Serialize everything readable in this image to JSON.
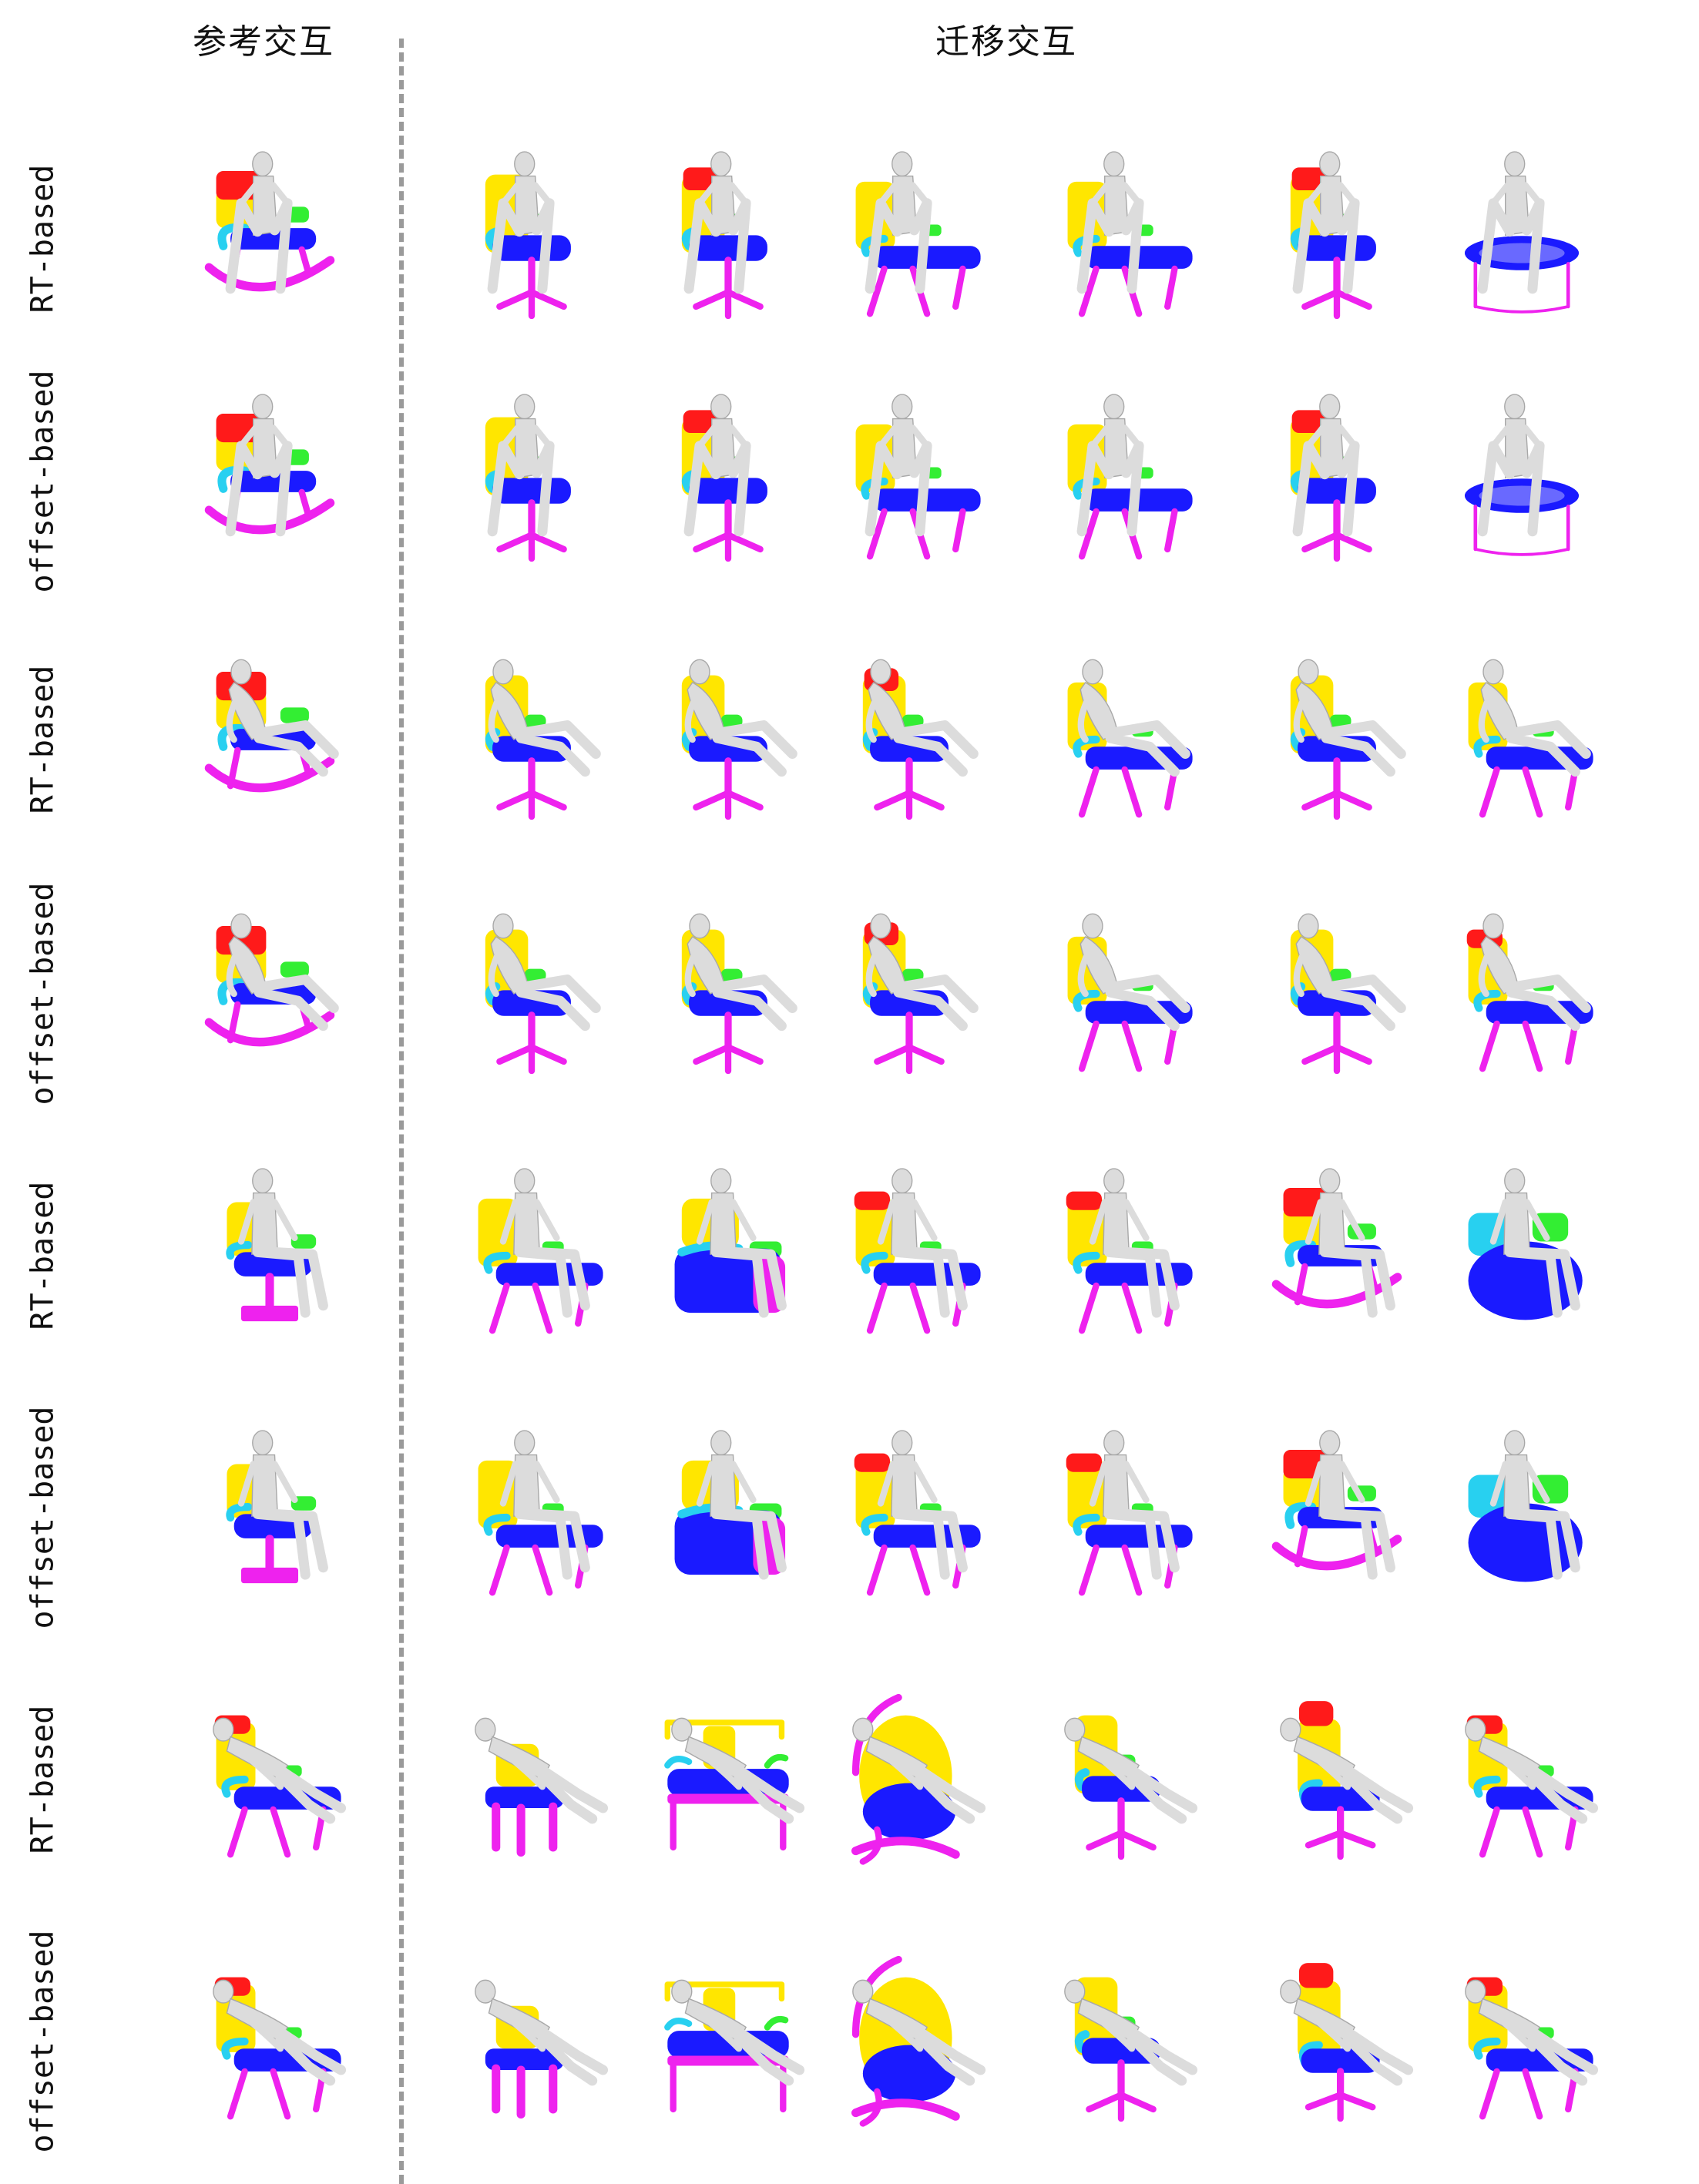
{
  "headers": {
    "reference": "参考交互",
    "transfer": "迁移交互"
  },
  "rows": [
    {
      "label": "RT-based"
    },
    {
      "label": "offset-based"
    },
    {
      "label": "RT-based"
    },
    {
      "label": "offset-based"
    },
    {
      "label": "RT-based"
    },
    {
      "label": "offset-based"
    },
    {
      "label": "RT-based"
    },
    {
      "label": "offset-based"
    }
  ],
  "colors": {
    "backrest": "#ffe600",
    "headrest": "#ff1a1a",
    "seat": "#1a1aff",
    "armrest_left": "#28d0f0",
    "armrest_right": "#33ee33",
    "legs": "#ee22ee",
    "human": "#dcdcdc"
  },
  "pose_groups": [
    "sitting-hands-on-knees",
    "reclining-legs-extended",
    "upright-sitting",
    "lying-back"
  ]
}
